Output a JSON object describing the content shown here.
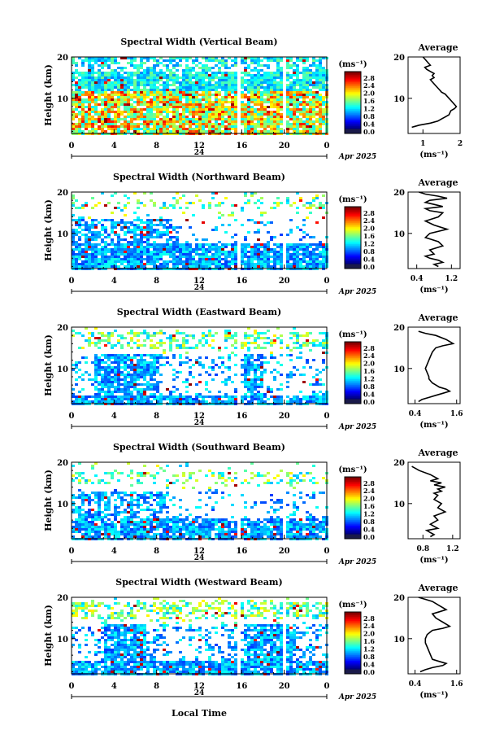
{
  "panels": [
    {
      "title": "Spectral Width (Vertical Beam)",
      "beam": "vertical"
    },
    {
      "title": "Spectral Width (Northward Beam)",
      "beam": "north"
    },
    {
      "title": "Spectral Width (Eastward Beam)",
      "beam": "east"
    },
    {
      "title": "Spectral Width (Southward Beam)",
      "beam": "south"
    },
    {
      "title": "Spectral Width (Westward Beam)",
      "beam": "west"
    }
  ],
  "common": {
    "ylabel": "Height (km)",
    "colorbar_unit": "(ms⁻¹)",
    "colorbar_ticks": [
      "0.0",
      "0.4",
      "0.8",
      "1.2",
      "1.6",
      "2.0",
      "2.4",
      "2.8"
    ],
    "time_ticks": [
      "0",
      "4",
      "8",
      "12",
      "16",
      "20",
      "0"
    ],
    "height_ticks": [
      "20",
      "10"
    ],
    "day_label": "24",
    "month_label": "Apr 2025",
    "avg_title": "Average",
    "avg_unit": "(ms⁻¹)",
    "xlabel": "Local Time"
  },
  "chart_data": [
    {
      "type": "heatmap",
      "title": "Spectral Width (Vertical Beam)",
      "ylabel": "Height (km)",
      "x_range": [
        0,
        24
      ],
      "y_range": [
        1.5,
        20
      ],
      "colorbar_range": [
        0,
        3.0
      ]
    },
    {
      "type": "line",
      "title": "Average",
      "xlabel": "(ms⁻¹)",
      "ylabel": "Height (km)",
      "x_ticks": [
        "1",
        "2"
      ],
      "xlim": [
        0.6,
        2.0
      ],
      "ylim": [
        1.5,
        20
      ],
      "x": [
        1.0,
        1.05,
        1.1,
        1.15,
        1.2,
        1.05,
        1.1,
        1.2,
        1.3,
        1.25,
        1.3,
        1.2,
        1.25,
        1.35,
        1.45,
        1.5,
        1.6,
        1.7,
        1.8,
        1.9,
        1.85,
        1.75,
        1.7,
        1.6,
        1.5,
        1.4,
        1.2,
        0.9,
        0.7
      ],
      "y": [
        20,
        19.5,
        19,
        18.5,
        18,
        17.5,
        17,
        16.5,
        16,
        15.5,
        15,
        14.5,
        14,
        13,
        12,
        11.5,
        11,
        10,
        9,
        8,
        7.5,
        7,
        6,
        5.5,
        5,
        4.5,
        4,
        3.5,
        3
      ]
    },
    {
      "type": "heatmap",
      "title": "Spectral Width (Northward Beam)",
      "ylabel": "Height (km)",
      "x_range": [
        0,
        24
      ],
      "y_range": [
        1.5,
        20
      ],
      "colorbar_range": [
        0,
        3.0
      ]
    },
    {
      "type": "line",
      "title": "Average",
      "xlabel": "(ms⁻¹)",
      "ylabel": "Height (km)",
      "x_ticks": [
        "0.4",
        "1.2"
      ],
      "xlim": [
        0.2,
        1.4
      ],
      "ylim": [
        1.5,
        20
      ],
      "x": [
        0.45,
        0.6,
        0.9,
        1.1,
        0.7,
        0.6,
        0.8,
        1.0,
        0.6,
        0.7,
        1.0,
        0.9,
        0.6,
        0.8,
        1.1,
        0.7,
        0.6,
        0.9,
        1.0,
        0.7,
        0.8,
        0.6,
        0.7,
        0.9,
        1.0,
        0.8,
        0.9
      ],
      "y": [
        20,
        19.5,
        19,
        18.5,
        18,
        17.5,
        17,
        16.5,
        16,
        15.5,
        15,
        14,
        13,
        12,
        11,
        10,
        9,
        8,
        7,
        6,
        5,
        4.5,
        4,
        3.5,
        3,
        2.5,
        2
      ]
    },
    {
      "type": "heatmap",
      "title": "Spectral Width (Eastward Beam)",
      "ylabel": "Height (km)",
      "x_range": [
        0,
        24
      ],
      "y_range": [
        1.5,
        20
      ],
      "colorbar_range": [
        0,
        3.0
      ]
    },
    {
      "type": "line",
      "title": "Average",
      "xlabel": "(ms⁻¹)",
      "ylabel": "Height (km)",
      "x_ticks": [
        "0.4",
        "1.6"
      ],
      "xlim": [
        0.2,
        1.7
      ],
      "ylim": [
        1.5,
        20
      ],
      "x": [
        0.5,
        0.7,
        1.0,
        1.3,
        1.5,
        1.2,
        1.0,
        0.9,
        0.85,
        0.8,
        0.75,
        0.7,
        0.75,
        0.8,
        0.8,
        0.85,
        0.9,
        1.0,
        1.1,
        1.3,
        1.4,
        1.2,
        1.0,
        0.8,
        0.6,
        0.5
      ],
      "y": [
        19,
        18.5,
        18,
        17,
        16,
        15.5,
        15,
        14,
        13,
        12,
        11,
        10,
        9,
        8,
        7.5,
        7,
        6.5,
        6,
        5.5,
        5,
        4.5,
        4,
        3.5,
        3,
        2.5,
        2
      ]
    },
    {
      "type": "heatmap",
      "title": "Spectral Width (Southward Beam)",
      "ylabel": "Height (km)",
      "x_range": [
        0,
        24
      ],
      "y_range": [
        1.5,
        20
      ],
      "colorbar_range": [
        0,
        3.0
      ]
    },
    {
      "type": "line",
      "title": "Average",
      "xlabel": "(ms⁻¹)",
      "ylabel": "Height (km)",
      "x_ticks": [
        "0.8",
        "1.2"
      ],
      "xlim": [
        0.6,
        1.3
      ],
      "ylim": [
        1.5,
        20
      ],
      "x": [
        0.65,
        0.7,
        0.75,
        0.9,
        1.0,
        0.9,
        1.05,
        0.95,
        1.1,
        1.0,
        1.05,
        0.95,
        1.0,
        0.95,
        1.05,
        1.0,
        1.1,
        0.95,
        1.0,
        0.9,
        0.95,
        1.0,
        0.85,
        0.9,
        0.95,
        0.9
      ],
      "y": [
        19,
        18.5,
        18,
        17,
        16,
        15.5,
        15,
        14.5,
        14,
        13.5,
        13,
        12.5,
        12,
        11,
        10,
        9,
        8,
        7,
        6,
        5,
        4.5,
        4,
        3.5,
        3,
        2.5,
        2
      ]
    },
    {
      "type": "heatmap",
      "title": "Spectral Width (Westward Beam)",
      "ylabel": "Height (km)",
      "x_range": [
        0,
        24
      ],
      "y_range": [
        1.5,
        20
      ],
      "colorbar_range": [
        0,
        3.0
      ]
    },
    {
      "type": "line",
      "title": "Average",
      "xlabel": "(ms⁻¹)",
      "ylabel": "Height (km)",
      "x_ticks": [
        "0.4",
        "1.6"
      ],
      "xlim": [
        0.2,
        1.7
      ],
      "ylim": [
        1.5,
        20
      ],
      "x": [
        0.5,
        0.7,
        0.9,
        1.1,
        1.3,
        1.1,
        0.9,
        1.0,
        1.2,
        1.4,
        1.2,
        0.9,
        0.75,
        0.7,
        0.7,
        0.75,
        0.8,
        0.85,
        0.9,
        1.1,
        1.3,
        1.2,
        0.9,
        0.7,
        0.55
      ],
      "y": [
        20,
        19.5,
        19,
        18,
        17,
        16.5,
        16,
        15,
        14,
        13,
        12.5,
        12,
        11,
        10,
        9,
        8,
        7,
        6,
        5,
        4.5,
        4,
        3.5,
        3,
        2.5,
        2
      ]
    }
  ]
}
